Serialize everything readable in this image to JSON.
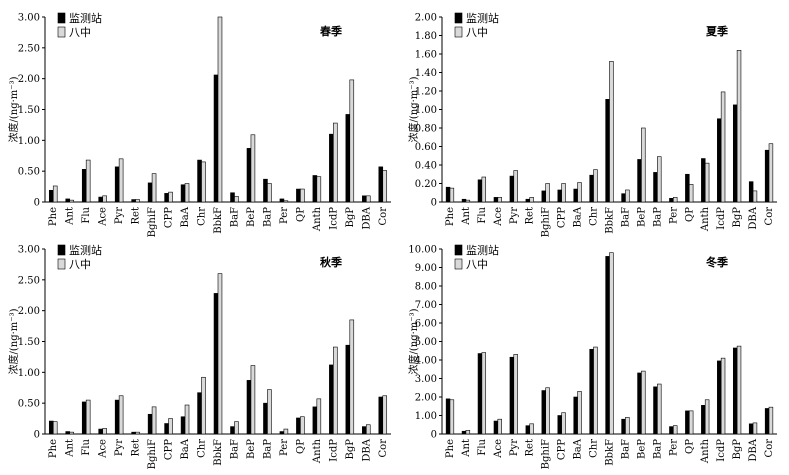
{
  "legend": {
    "series_a": "监测站",
    "series_b": "八中"
  },
  "ylabel": "浓度/(ng·m⁻³)",
  "colors": {
    "series_a": "#000000",
    "series_b": "#d9d9d9",
    "edge": "#000000"
  },
  "chart_data": [
    {
      "type": "bar",
      "title": "春季",
      "ylabel": "浓度/(ng·m⁻³)",
      "ylim": [
        0,
        3.0
      ],
      "yticks": [
        "0",
        "0.50",
        "1.00",
        "1.50",
        "2.00",
        "2.50",
        "3.00"
      ],
      "ytick_values": [
        0,
        0.5,
        1.0,
        1.5,
        2.0,
        2.5,
        3.0
      ],
      "legend_position": "top-left",
      "categories": [
        "Phe",
        "Ant",
        "Flu",
        "Ace",
        "Pyr",
        "Ret",
        "BghiF",
        "CPP",
        "BaA",
        "Chr",
        "BbkF",
        "BaF",
        "BeP",
        "BaP",
        "Per",
        "QP",
        "Anth",
        "IcdP",
        "BgP",
        "DBA",
        "Cor"
      ],
      "series": [
        {
          "name": "监测站",
          "values": [
            0.19,
            0.05,
            0.53,
            0.08,
            0.57,
            0.04,
            0.31,
            0.14,
            0.28,
            0.68,
            2.06,
            0.15,
            0.87,
            0.37,
            0.05,
            0.21,
            0.43,
            1.1,
            1.42,
            0.1,
            0.57
          ]
        },
        {
          "name": "八中",
          "values": [
            0.26,
            0.03,
            0.68,
            0.1,
            0.7,
            0.04,
            0.46,
            0.16,
            0.3,
            0.65,
            3.0,
            0.09,
            1.09,
            0.3,
            0.02,
            0.21,
            0.41,
            1.28,
            1.98,
            0.1,
            0.51
          ]
        }
      ]
    },
    {
      "type": "bar",
      "title": "夏季",
      "ylabel": "浓度/(ng·m⁻³)",
      "ylim": [
        0,
        2.0
      ],
      "yticks": [
        "0",
        "0.20",
        "0.40",
        "0.60",
        "0.80",
        "1.00",
        "1.20",
        "1.40",
        "1.60",
        "1.80",
        "2.00"
      ],
      "ytick_values": [
        0,
        0.2,
        0.4,
        0.6,
        0.8,
        1.0,
        1.2,
        1.4,
        1.6,
        1.8,
        2.0
      ],
      "legend_position": "top-left",
      "categories": [
        "Phe",
        "Ant",
        "Flu",
        "Ace",
        "Pyr",
        "Ret",
        "BghiF",
        "CPP",
        "BaA",
        "Chr",
        "BbkF",
        "BaF",
        "BeP",
        "BaP",
        "Per",
        "QP",
        "Anth",
        "IcdP",
        "BgP",
        "DBA",
        "Cor"
      ],
      "series": [
        {
          "name": "监测站",
          "values": [
            0.16,
            0.03,
            0.24,
            0.05,
            0.28,
            0.03,
            0.12,
            0.13,
            0.14,
            0.29,
            1.11,
            0.09,
            0.46,
            0.32,
            0.04,
            0.3,
            0.47,
            0.9,
            1.05,
            0.22,
            0.56
          ]
        },
        {
          "name": "八中",
          "values": [
            0.15,
            0.02,
            0.27,
            0.05,
            0.34,
            0.05,
            0.2,
            0.2,
            0.21,
            0.35,
            1.52,
            0.13,
            0.8,
            0.49,
            0.05,
            0.19,
            0.42,
            1.19,
            1.64,
            0.12,
            0.63
          ]
        }
      ]
    },
    {
      "type": "bar",
      "title": "秋季",
      "ylabel": "浓度/(ng·m⁻³)",
      "ylim": [
        0,
        3.0
      ],
      "yticks": [
        "0",
        "0.50",
        "1.00",
        "1.50",
        "2.00",
        "2.50",
        "3.00"
      ],
      "ytick_values": [
        0,
        0.5,
        1.0,
        1.5,
        2.0,
        2.5,
        3.0
      ],
      "legend_position": "top-left",
      "categories": [
        "Phe",
        "Ant",
        "Flu",
        "Ace",
        "Pyr",
        "Ret",
        "BghiF",
        "CPP",
        "BaA",
        "Chr",
        "BbkF",
        "BaF",
        "BeP",
        "BaP",
        "Per",
        "QP",
        "Anth",
        "IcdP",
        "BgP",
        "DBA",
        "Cor"
      ],
      "series": [
        {
          "name": "监测站",
          "values": [
            0.21,
            0.04,
            0.52,
            0.08,
            0.55,
            0.03,
            0.32,
            0.17,
            0.28,
            0.67,
            2.28,
            0.12,
            0.87,
            0.5,
            0.04,
            0.26,
            0.44,
            1.12,
            1.44,
            0.12,
            0.6
          ]
        },
        {
          "name": "八中",
          "values": [
            0.2,
            0.03,
            0.55,
            0.09,
            0.62,
            0.03,
            0.44,
            0.25,
            0.47,
            0.92,
            2.6,
            0.2,
            1.11,
            0.72,
            0.08,
            0.28,
            0.57,
            1.41,
            1.85,
            0.15,
            0.62
          ]
        }
      ]
    },
    {
      "type": "bar",
      "title": "冬季",
      "ylabel": "浓度/(ng·m⁻³)",
      "ylim": [
        0,
        10.0
      ],
      "yticks": [
        "0",
        "1.00",
        "2.00",
        "3.00",
        "4.00",
        "5.00",
        "6.00",
        "7.00",
        "8.00",
        "9.00",
        "10.00"
      ],
      "ytick_values": [
        0,
        1,
        2,
        3,
        4,
        5,
        6,
        7,
        8,
        9,
        10
      ],
      "legend_position": "top-left",
      "categories": [
        "Phe",
        "Ant",
        "Flu",
        "Ace",
        "Pyr",
        "Ret",
        "BghiF",
        "CPP",
        "BaA",
        "Chr",
        "BbkF",
        "BaF",
        "BeP",
        "BaP",
        "Per",
        "QP",
        "Anth",
        "IcdP",
        "BgP",
        "DBA",
        "Cor"
      ],
      "series": [
        {
          "name": "监测站",
          "values": [
            1.9,
            0.15,
            4.35,
            0.7,
            4.15,
            0.45,
            2.35,
            1.0,
            2.0,
            4.58,
            9.6,
            0.8,
            3.3,
            2.55,
            0.4,
            1.25,
            1.55,
            3.95,
            4.65,
            0.55,
            1.38
          ]
        },
        {
          "name": "八中",
          "values": [
            1.85,
            0.2,
            4.4,
            0.8,
            4.3,
            0.55,
            2.5,
            1.15,
            2.3,
            4.7,
            9.8,
            0.9,
            3.4,
            2.7,
            0.45,
            1.25,
            1.85,
            4.1,
            4.75,
            0.6,
            1.45
          ]
        }
      ]
    }
  ]
}
